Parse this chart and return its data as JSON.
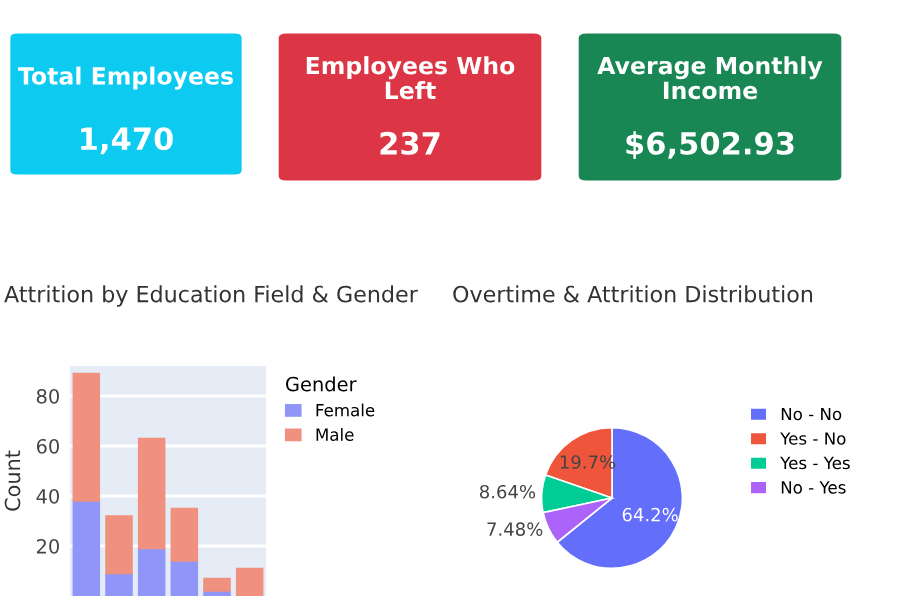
{
  "chart_data": [
    {
      "type": "other",
      "title": "Total Employees",
      "annotations": [
        "1,470"
      ],
      "color": "#0dcaf0"
    },
    {
      "type": "other",
      "title": "Employees Who Left",
      "annotations": [
        "237"
      ],
      "color": "#dc3545"
    },
    {
      "type": "other",
      "title": "Average Monthly Income",
      "annotations": [
        "$6,502.93"
      ],
      "color": "#198754"
    },
    {
      "type": "bar",
      "title": "Attrition by Education Field & Gender",
      "ylabel": "Count",
      "legend_title": "Gender",
      "stacked": true,
      "categories": [
        null,
        null,
        null,
        null,
        null,
        null
      ],
      "series": [
        {
          "name": "Female",
          "color": "#8f96f8",
          "values": [
            38,
            9,
            19,
            14,
            2,
            0
          ]
        },
        {
          "name": "Male",
          "color": "#f0907f",
          "values": [
            51,
            23,
            44,
            21,
            5,
            11
          ]
        }
      ],
      "ylim": [
        0,
        92
      ],
      "yticks": [
        20,
        40,
        60,
        80
      ],
      "grid": "y",
      "legend": "top right"
    },
    {
      "type": "pie",
      "title": "Overtime & Attrition Distribution",
      "categories": [
        "No - No",
        "Yes - No",
        "Yes - Yes",
        "No - Yes"
      ],
      "values": [
        64.2,
        19.7,
        8.64,
        7.48
      ],
      "value_labels": [
        "64.2%",
        "19.7%",
        "8.64%",
        "7.48%"
      ],
      "colors": [
        "#636efa",
        "#ef553b",
        "#00cc96",
        "#ab63fa"
      ],
      "legend": "right"
    }
  ]
}
